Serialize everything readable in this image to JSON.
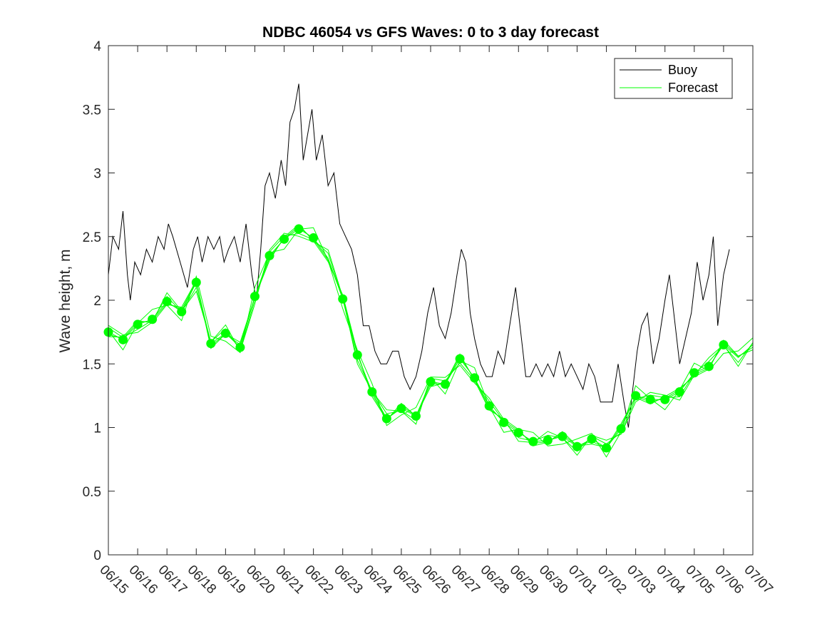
{
  "chart_data": {
    "type": "line",
    "title": "NDBC 46054 vs GFS Waves: 0 to 3 day forecast",
    "xlabel": "",
    "ylabel": "Wave height, m",
    "ylim": [
      0,
      4
    ],
    "yticks": [
      "0",
      "0.5",
      "1",
      "1.5",
      "2",
      "2.5",
      "3",
      "3.5",
      "4"
    ],
    "xlim": [
      "06/15",
      "07/07"
    ],
    "xticks": [
      "06/15",
      "06/16",
      "06/17",
      "06/18",
      "06/19",
      "06/20",
      "06/21",
      "06/22",
      "06/23",
      "06/24",
      "06/25",
      "06/26",
      "06/27",
      "06/28",
      "06/29",
      "06/30",
      "07/01",
      "07/02",
      "07/03",
      "07/04",
      "07/05",
      "07/06",
      "07/07"
    ],
    "x_unit": "days since 06/15",
    "legend": {
      "position": "top-right",
      "entries": [
        "Buoy",
        "Forecast"
      ]
    },
    "colors": {
      "buoy": "#000000",
      "forecast": "#00ff00"
    },
    "series": [
      {
        "name": "Buoy",
        "x": [
          0,
          0.15,
          0.35,
          0.5,
          0.65,
          0.75,
          0.9,
          1.1,
          1.3,
          1.5,
          1.7,
          1.9,
          2.05,
          2.2,
          2.45,
          2.7,
          2.9,
          3.05,
          3.2,
          3.4,
          3.6,
          3.8,
          3.95,
          4.1,
          4.3,
          4.5,
          4.7,
          4.9,
          5.05,
          5.2,
          5.35,
          5.5,
          5.7,
          5.9,
          6.05,
          6.2,
          6.35,
          6.5,
          6.65,
          6.8,
          6.95,
          7.1,
          7.3,
          7.5,
          7.7,
          7.9,
          8.1,
          8.3,
          8.5,
          8.7,
          8.9,
          9.1,
          9.3,
          9.5,
          9.7,
          9.9,
          10.1,
          10.3,
          10.5,
          10.7,
          10.9,
          11.1,
          11.3,
          11.5,
          11.7,
          11.9,
          12.05,
          12.2,
          12.35,
          12.5,
          12.7,
          12.9,
          13.1,
          13.3,
          13.5,
          13.7,
          13.9,
          14.1,
          14.25,
          14.4,
          14.6,
          14.8,
          15.0,
          15.2,
          15.4,
          15.6,
          15.8,
          16.0,
          16.2,
          16.4,
          16.6,
          16.8,
          17.0,
          17.2,
          17.4,
          17.6,
          17.75,
          17.9,
          18.05,
          18.2,
          18.4,
          18.6,
          18.8,
          19.0,
          19.15,
          19.3,
          19.5,
          19.7,
          19.9,
          20.1,
          20.3,
          20.5,
          20.65,
          20.8,
          21.0,
          21.2
        ],
        "values": [
          2.2,
          2.5,
          2.4,
          2.7,
          2.2,
          2.0,
          2.3,
          2.2,
          2.4,
          2.3,
          2.5,
          2.4,
          2.6,
          2.5,
          2.3,
          2.1,
          2.4,
          2.5,
          2.3,
          2.5,
          2.4,
          2.5,
          2.3,
          2.4,
          2.5,
          2.3,
          2.6,
          2.2,
          2.0,
          2.4,
          2.9,
          3.0,
          2.8,
          3.1,
          2.9,
          3.4,
          3.5,
          3.7,
          3.1,
          3.3,
          3.5,
          3.1,
          3.3,
          2.9,
          3.0,
          2.6,
          2.5,
          2.4,
          2.2,
          1.8,
          1.8,
          1.6,
          1.5,
          1.5,
          1.6,
          1.6,
          1.4,
          1.3,
          1.4,
          1.6,
          1.9,
          2.1,
          1.8,
          1.7,
          1.9,
          2.2,
          2.4,
          2.3,
          1.9,
          1.7,
          1.5,
          1.4,
          1.4,
          1.6,
          1.5,
          1.8,
          2.1,
          1.7,
          1.4,
          1.4,
          1.5,
          1.4,
          1.5,
          1.4,
          1.6,
          1.4,
          1.5,
          1.4,
          1.3,
          1.5,
          1.4,
          1.2,
          1.2,
          1.2,
          1.5,
          1.2,
          1.0,
          1.3,
          1.6,
          1.8,
          1.9,
          1.5,
          1.7,
          2.0,
          2.2,
          1.9,
          1.5,
          1.7,
          1.9,
          2.3,
          2.0,
          2.2,
          2.5,
          1.8,
          2.2,
          2.4
        ]
      },
      {
        "name": "Forecast",
        "x": [
          0,
          0.5,
          1,
          1.5,
          2,
          2.5,
          3,
          3.5,
          4,
          4.5,
          5,
          5.5,
          6,
          6.5,
          7,
          7.5,
          8,
          8.5,
          9,
          9.5,
          10,
          10.5,
          11,
          11.5,
          12,
          12.5,
          13,
          13.5,
          14,
          14.5,
          15,
          15.5,
          16,
          16.5,
          17,
          17.5,
          18,
          18.5,
          19,
          19.5,
          20,
          20.5,
          21,
          21.5,
          22
        ],
        "values": [
          1.75,
          1.69,
          1.81,
          1.85,
          1.99,
          1.91,
          2.14,
          1.66,
          1.74,
          1.63,
          2.03,
          2.35,
          2.48,
          2.56,
          2.49,
          2.33,
          2.01,
          1.57,
          1.28,
          1.07,
          1.15,
          1.09,
          1.36,
          1.34,
          1.54,
          1.39,
          1.17,
          1.04,
          0.96,
          0.89,
          0.9,
          0.93,
          0.85,
          0.91,
          0.84,
          0.99,
          1.25,
          1.22,
          1.22,
          1.28,
          1.43,
          1.48,
          1.65,
          1.55,
          1.65
        ]
      }
    ],
    "forecast_markers": {
      "x": [
        0,
        0.5,
        1,
        1.5,
        2,
        2.5,
        3,
        3.5,
        4,
        4.5,
        5,
        5.5,
        6,
        6.5,
        7,
        8,
        8.5,
        9,
        9.5,
        10,
        10.5,
        11,
        11.5,
        12,
        12.5,
        13,
        13.5,
        14,
        14.5,
        15,
        15.5,
        16,
        16.5,
        17,
        17.5,
        18,
        18.5,
        19,
        19.5,
        20,
        20.5,
        21
      ],
      "values": [
        1.75,
        1.69,
        1.81,
        1.85,
        1.99,
        1.91,
        2.14,
        1.66,
        1.74,
        1.63,
        2.03,
        2.35,
        2.48,
        2.56,
        2.49,
        2.01,
        1.57,
        1.28,
        1.07,
        1.15,
        1.09,
        1.36,
        1.34,
        1.54,
        1.39,
        1.17,
        1.04,
        0.96,
        0.89,
        0.9,
        0.93,
        0.85,
        0.91,
        0.84,
        0.99,
        1.25,
        1.22,
        1.22,
        1.28,
        1.43,
        1.48,
        1.65
      ]
    }
  }
}
